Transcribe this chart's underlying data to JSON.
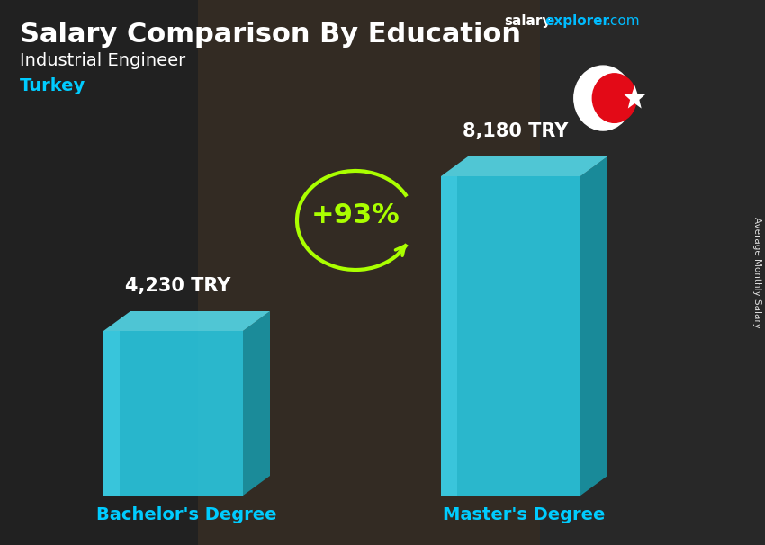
{
  "title_main": "Salary Comparison By Education",
  "title_sub": "Industrial Engineer",
  "title_country": "Turkey",
  "watermark_salary": "salary",
  "watermark_explorer": "explorer",
  "watermark_com": ".com",
  "right_label": "Average Monthly Salary",
  "categories": [
    "Bachelor's Degree",
    "Master's Degree"
  ],
  "values": [
    4230,
    8180
  ],
  "value_labels": [
    "4,230 TRY",
    "8,180 TRY"
  ],
  "pct_change": "+93%",
  "bar_face_color": "#29CCE5",
  "bar_side_color": "#1899AA",
  "bar_top_color": "#55DDEE",
  "bg_color": "#333333",
  "title_color": "#ffffff",
  "subtitle_color": "#ffffff",
  "country_color": "#00CCFF",
  "category_color": "#00CCFF",
  "value_color": "#ffffff",
  "pct_color": "#AAFF00",
  "arrow_color": "#AAFF00",
  "flag_bg": "#E30A17",
  "watermark_color1": "#ffffff",
  "watermark_color2": "#00BBFF"
}
